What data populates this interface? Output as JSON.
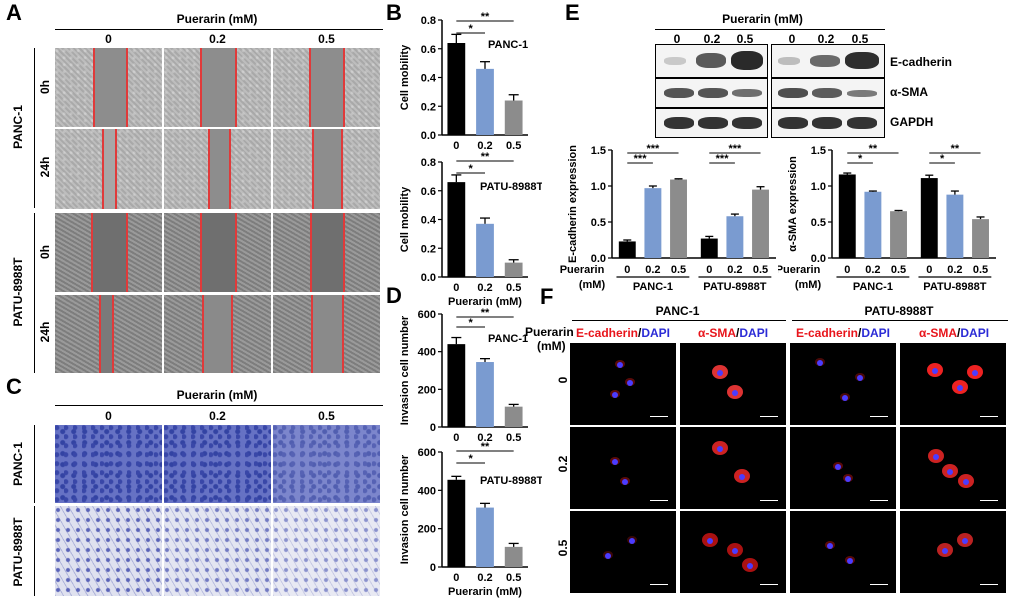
{
  "panels": {
    "A": "A",
    "B": "B",
    "C": "C",
    "D": "D",
    "E": "E",
    "F": "F"
  },
  "panelA": {
    "title": "Puerarin (mM)",
    "doses": [
      "0",
      "0.2",
      "0.5"
    ],
    "cell_lines": [
      "PANC-1",
      "PATU-8988T"
    ],
    "times": [
      "0h",
      "24h"
    ]
  },
  "panelC": {
    "title": "Puerarin (mM)",
    "doses": [
      "0",
      "0.2",
      "0.5"
    ],
    "cell_lines": [
      "PANC-1",
      "PATU-8988T"
    ]
  },
  "panelE": {
    "title": "Puerarin (mM)",
    "doses": [
      "0",
      "0.2",
      "0.5"
    ],
    "bands": [
      "E-cadherin",
      "α-SMA",
      "GAPDH"
    ]
  },
  "panelF": {
    "groups": [
      "PANC-1",
      "PATU-8988T"
    ],
    "row_title": "Puerarin\n(mM)",
    "row_title_line1": "Puerarin",
    "row_title_line2": "(mM)",
    "rows": [
      "0",
      "0.2",
      "0.5"
    ],
    "stain_a_red": "E-cadherin",
    "stain_b_red": "α-SMA",
    "sep": "/",
    "dapi": "DAPI"
  },
  "colors": {
    "black": "#000000",
    "blue": "#7a9bd0",
    "gray": "#8c8c8c",
    "red": "#e8141b",
    "dapi_blue": "#2b2bd6"
  },
  "chart_data": [
    {
      "id": "B1",
      "type": "bar",
      "categories": [
        "0",
        "0.2",
        "0.5"
      ],
      "values": [
        0.64,
        0.46,
        0.24
      ],
      "errors": [
        0.06,
        0.05,
        0.04
      ],
      "ylabel": "Cell mobility",
      "ylim": [
        0,
        0.8
      ],
      "yticks": [
        "0.0",
        "0.2",
        "0.4",
        "0.6",
        "0.8"
      ],
      "annotation": "PANC-1",
      "sig": [
        {
          "from": 0,
          "to": 1,
          "label": "*"
        },
        {
          "from": 0,
          "to": 2,
          "label": "**"
        }
      ]
    },
    {
      "id": "B2",
      "type": "bar",
      "categories": [
        "0",
        "0.2",
        "0.5"
      ],
      "values": [
        0.66,
        0.37,
        0.1
      ],
      "errors": [
        0.05,
        0.04,
        0.02
      ],
      "ylabel": "Cell mobility",
      "ylim": [
        0,
        0.8
      ],
      "yticks": [
        "0.0",
        "0.2",
        "0.4",
        "0.6",
        "0.8"
      ],
      "annotation": "PATU-8988T",
      "xlabel": "Puerarin (mM)",
      "sig": [
        {
          "from": 0,
          "to": 1,
          "label": "*"
        },
        {
          "from": 0,
          "to": 2,
          "label": "**"
        }
      ]
    },
    {
      "id": "D1",
      "type": "bar",
      "categories": [
        "0",
        "0.2",
        "0.5"
      ],
      "values": [
        440,
        345,
        108
      ],
      "errors": [
        35,
        18,
        12
      ],
      "ylabel": "Invasion cell number",
      "ylim": [
        0,
        600
      ],
      "yticks": [
        "0",
        "200",
        "400",
        "600"
      ],
      "annotation": "PANC-1",
      "sig": [
        {
          "from": 0,
          "to": 1,
          "label": "*"
        },
        {
          "from": 0,
          "to": 2,
          "label": "**"
        }
      ]
    },
    {
      "id": "D2",
      "type": "bar",
      "categories": [
        "0",
        "0.2",
        "0.5"
      ],
      "values": [
        455,
        310,
        105
      ],
      "errors": [
        18,
        22,
        18
      ],
      "ylabel": "Invasion cell number",
      "ylim": [
        0,
        600
      ],
      "yticks": [
        "0",
        "200",
        "400",
        "600"
      ],
      "annotation": "PATU-8988T",
      "xlabel": "Puerarin (mM)",
      "sig": [
        {
          "from": 0,
          "to": 1,
          "label": "*"
        },
        {
          "from": 0,
          "to": 2,
          "label": "**"
        }
      ]
    },
    {
      "id": "E1",
      "type": "bar",
      "groups": [
        "PANC-1",
        "PATU-8988T"
      ],
      "categories": [
        "0",
        "0.2",
        "0.5"
      ],
      "values": [
        [
          0.23,
          0.97,
          1.09
        ],
        [
          0.27,
          0.58,
          0.95
        ]
      ],
      "errors": [
        [
          0.02,
          0.03,
          0.01
        ],
        [
          0.03,
          0.03,
          0.04
        ]
      ],
      "ylabel": "E-cadherin expression",
      "ylim": [
        0,
        1.5
      ],
      "yticks": [
        "0.0",
        "0.5",
        "1.0",
        "1.5"
      ],
      "xrow_label": "Puerarin",
      "unit_label": "(mM)",
      "sig": [
        {
          "g": 0,
          "from": 0,
          "to": 1,
          "label": "***"
        },
        {
          "g": 0,
          "from": 0,
          "to": 2,
          "label": "***"
        },
        {
          "g": 1,
          "from": 0,
          "to": 1,
          "label": "***"
        },
        {
          "g": 1,
          "from": 0,
          "to": 2,
          "label": "***"
        }
      ]
    },
    {
      "id": "E2",
      "type": "bar",
      "groups": [
        "PANC-1",
        "PATU-8988T"
      ],
      "categories": [
        "0",
        "0.2",
        "0.5"
      ],
      "values": [
        [
          1.16,
          0.92,
          0.65
        ],
        [
          1.11,
          0.88,
          0.54
        ]
      ],
      "errors": [
        [
          0.02,
          0.01,
          0.01
        ],
        [
          0.04,
          0.05,
          0.03
        ]
      ],
      "ylabel": "α-SMA expression",
      "ylim": [
        0,
        1.5
      ],
      "yticks": [
        "0.0",
        "0.5",
        "1.0",
        "1.5"
      ],
      "xrow_label": "Puerarin",
      "unit_label": "(mM)",
      "sig": [
        {
          "g": 0,
          "from": 0,
          "to": 1,
          "label": "*"
        },
        {
          "g": 0,
          "from": 0,
          "to": 2,
          "label": "**"
        },
        {
          "g": 1,
          "from": 0,
          "to": 1,
          "label": "*"
        },
        {
          "g": 1,
          "from": 0,
          "to": 2,
          "label": "**"
        }
      ]
    }
  ]
}
